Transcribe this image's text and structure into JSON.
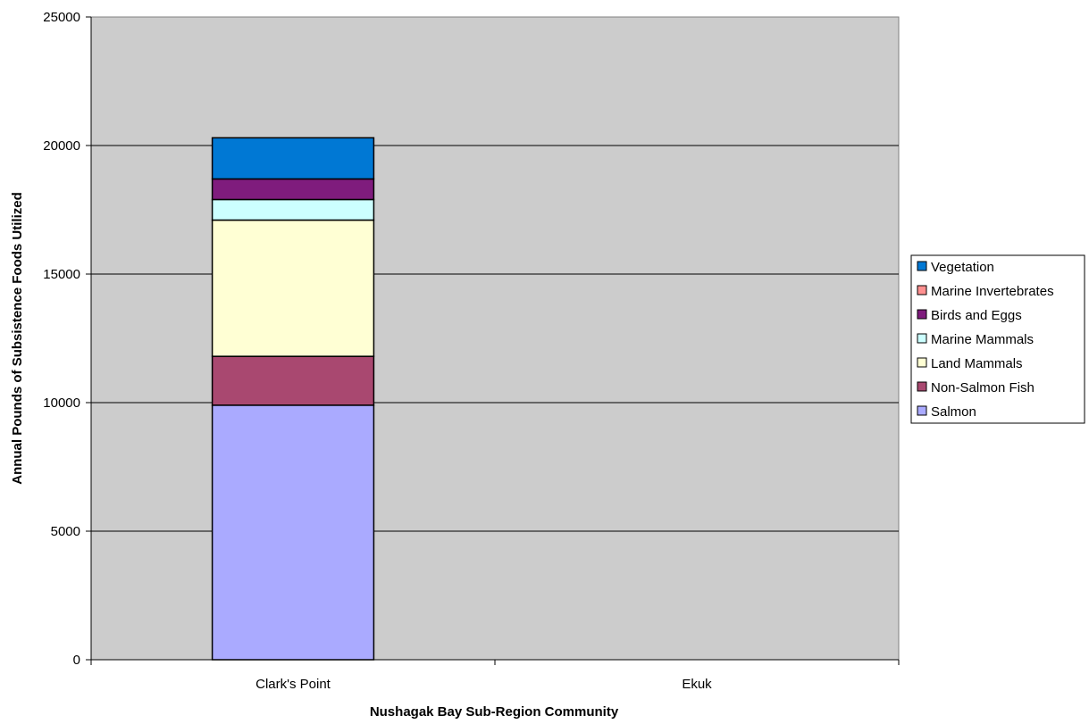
{
  "chart_data": {
    "type": "bar",
    "stacked": true,
    "title": "",
    "xlabel": "Nushagak Bay Sub-Region Community",
    "ylabel": "Annual Pounds of Subsistence Foods Utilized",
    "ylim": [
      0,
      25000
    ],
    "yticks": [
      "0",
      "5000",
      "10000",
      "15000",
      "20000",
      "25000"
    ],
    "grid": true,
    "legend_position": "right",
    "plot_background": "#cccccc",
    "categories": [
      "Clark's Point",
      "Ekuk"
    ],
    "series": [
      {
        "name": "Salmon",
        "color": "#aaaaff",
        "values": [
          9900,
          0
        ]
      },
      {
        "name": "Non-Salmon Fish",
        "color": "#a94870",
        "values": [
          1900,
          0
        ]
      },
      {
        "name": "Land Mammals",
        "color": "#ffffd4",
        "values": [
          5300,
          0
        ]
      },
      {
        "name": "Marine Mammals",
        "color": "#ccffff",
        "values": [
          800,
          0
        ]
      },
      {
        "name": "Birds and Eggs",
        "color": "#7f1c7d",
        "values": [
          800,
          0
        ]
      },
      {
        "name": "Marine Invertebrates",
        "color": "#ff9090",
        "values": [
          0,
          0
        ]
      },
      {
        "name": "Vegetation",
        "color": "#0078d4",
        "values": [
          1600,
          0
        ]
      }
    ],
    "legend_labels": [
      "Vegetation",
      "Marine Invertebrates",
      "Birds and Eggs",
      "Marine Mammals",
      "Land Mammals",
      " Non-Salmon Fish",
      " Salmon"
    ]
  }
}
